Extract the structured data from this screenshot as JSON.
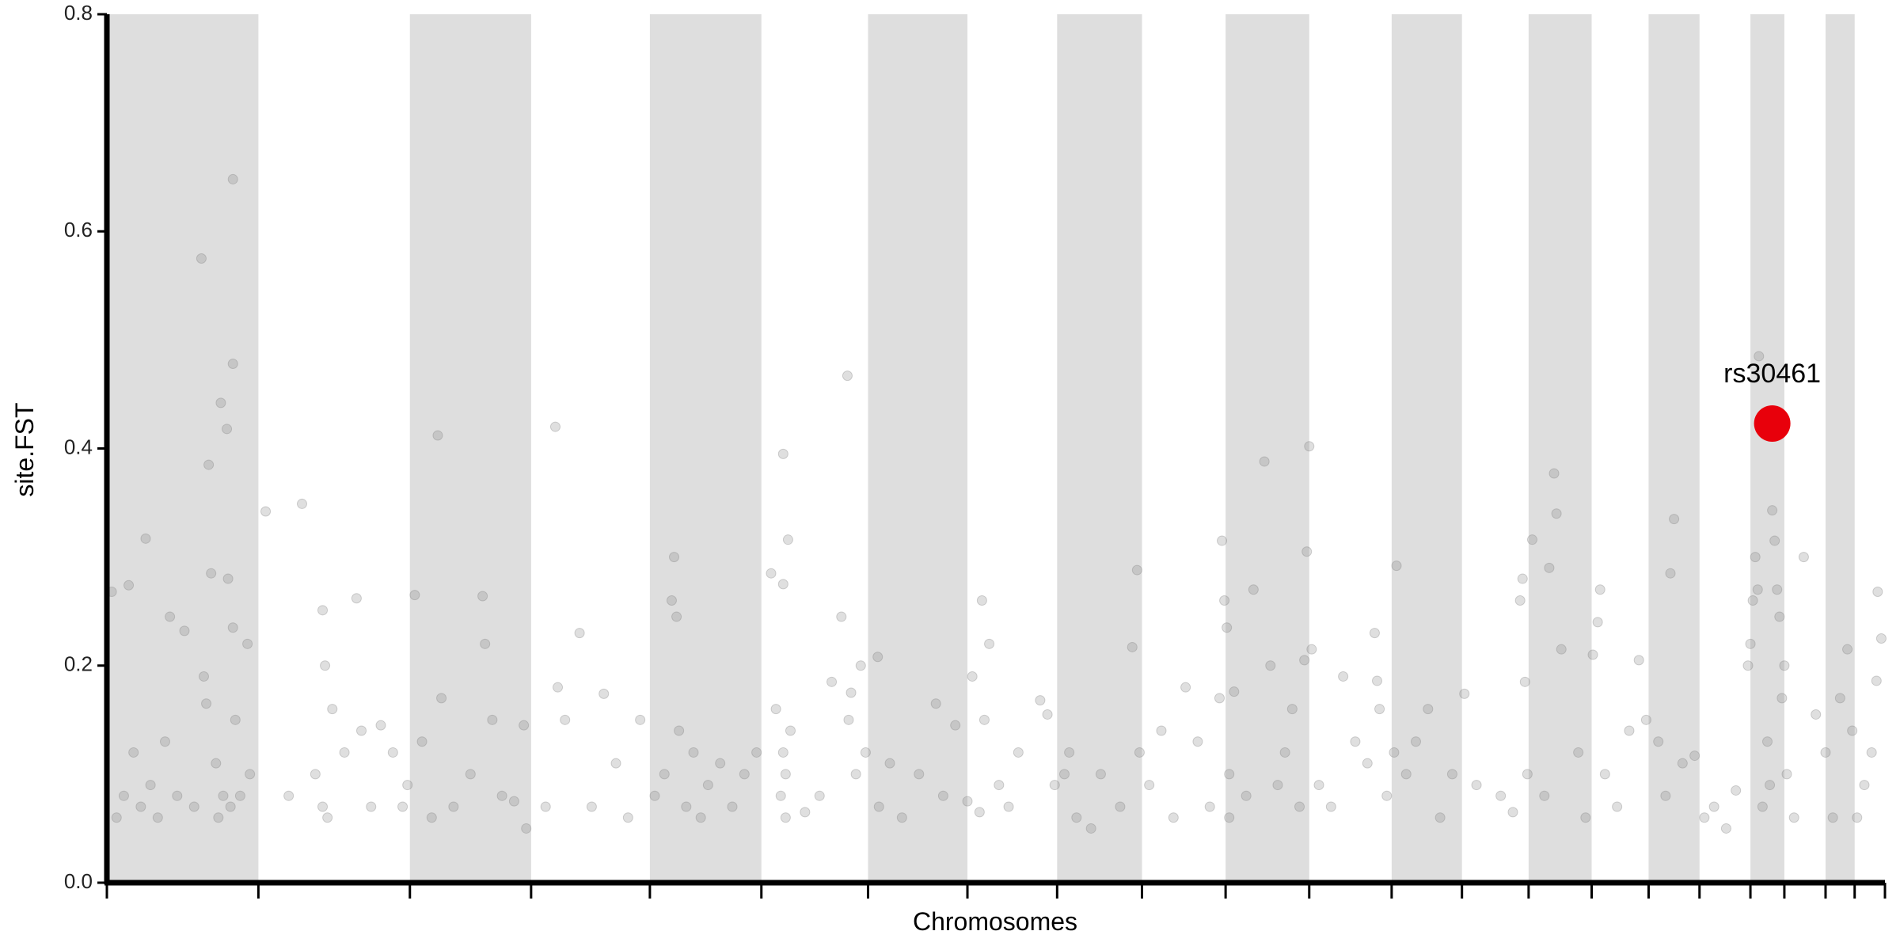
{
  "chart_data": {
    "type": "scatter",
    "x_label": "Chromosomes",
    "y_label": "site.FST",
    "xlim": [
      0,
      1467
    ],
    "ylim": [
      0,
      0.8
    ],
    "yticks": [
      {
        "value": 0,
        "label": "0.0"
      },
      0.2,
      0.4,
      0.6,
      0.8
    ],
    "chromosome_bounds": [
      0,
      125,
      250,
      350,
      448,
      540,
      628,
      710,
      784,
      854,
      923,
      992,
      1060,
      1118,
      1173,
      1225,
      1272,
      1314,
      1356,
      1384,
      1418,
      1442,
      1467
    ],
    "band_color": "#dedede",
    "color": "#808080",
    "x": [
      4,
      8,
      14,
      18,
      22,
      28,
      32,
      36,
      42,
      48,
      52,
      58,
      64,
      72,
      78,
      80,
      82,
      84,
      86,
      90,
      92,
      94,
      96,
      99,
      100,
      102,
      104,
      104,
      104,
      106,
      110,
      116,
      118,
      131,
      150,
      161,
      172,
      178,
      178,
      180,
      182,
      186,
      196,
      206,
      210,
      218,
      226,
      236,
      244,
      248,
      254,
      260,
      268,
      273,
      276,
      286,
      300,
      310,
      312,
      318,
      326,
      336,
      344,
      346,
      362,
      370,
      372,
      378,
      390,
      400,
      410,
      420,
      430,
      440,
      452,
      460,
      466,
      468,
      470,
      472,
      478,
      484,
      490,
      496,
      506,
      516,
      526,
      536,
      548,
      552,
      556,
      558,
      558,
      558,
      560,
      560,
      562,
      564,
      576,
      588,
      598,
      606,
      611,
      612,
      614,
      618,
      622,
      626,
      636,
      637,
      646,
      656,
      670,
      684,
      690,
      700,
      710,
      714,
      720,
      722,
      724,
      728,
      736,
      744,
      752,
      770,
      776,
      782,
      790,
      794,
      800,
      812,
      820,
      836,
      846,
      850,
      852,
      860,
      870,
      880,
      890,
      900,
      910,
      918,
      920,
      922,
      924,
      926,
      926,
      930,
      940,
      946,
      955,
      960,
      966,
      972,
      978,
      984,
      988,
      990,
      992,
      994,
      1000,
      1010,
      1020,
      1030,
      1040,
      1046,
      1048,
      1050,
      1056,
      1062,
      1064,
      1072,
      1080,
      1090,
      1100,
      1110,
      1120,
      1130,
      1150,
      1160,
      1166,
      1168,
      1170,
      1172,
      1176,
      1186,
      1190,
      1194,
      1196,
      1200,
      1214,
      1220,
      1226,
      1230,
      1232,
      1236,
      1246,
      1256,
      1264,
      1270,
      1280,
      1286,
      1290,
      1293,
      1300,
      1310,
      1318,
      1326,
      1336,
      1344,
      1354,
      1356,
      1358,
      1360,
      1362,
      1363,
      1366,
      1370,
      1372,
      1374,
      1376,
      1378,
      1380,
      1382,
      1384,
      1386,
      1392,
      1400,
      1410,
      1418,
      1424,
      1430,
      1436,
      1440,
      1444,
      1450,
      1456,
      1460,
      1461,
      1464
    ],
    "values": [
      0.268,
      0.06,
      0.08,
      0.274,
      0.12,
      0.07,
      0.317,
      0.09,
      0.06,
      0.13,
      0.245,
      0.08,
      0.232,
      0.07,
      0.575,
      0.19,
      0.165,
      0.385,
      0.285,
      0.11,
      0.06,
      0.442,
      0.08,
      0.418,
      0.28,
      0.07,
      0.648,
      0.478,
      0.235,
      0.15,
      0.08,
      0.22,
      0.1,
      0.342,
      0.08,
      0.349,
      0.1,
      0.251,
      0.07,
      0.2,
      0.06,
      0.16,
      0.12,
      0.262,
      0.14,
      0.07,
      0.145,
      0.12,
      0.07,
      0.09,
      0.265,
      0.13,
      0.06,
      0.412,
      0.17,
      0.07,
      0.1,
      0.264,
      0.22,
      0.15,
      0.08,
      0.075,
      0.145,
      0.05,
      0.07,
      0.42,
      0.18,
      0.15,
      0.23,
      0.07,
      0.174,
      0.11,
      0.06,
      0.15,
      0.08,
      0.1,
      0.26,
      0.3,
      0.245,
      0.14,
      0.07,
      0.12,
      0.06,
      0.09,
      0.11,
      0.07,
      0.1,
      0.12,
      0.285,
      0.16,
      0.08,
      0.395,
      0.275,
      0.12,
      0.06,
      0.1,
      0.316,
      0.14,
      0.065,
      0.08,
      0.185,
      0.245,
      0.467,
      0.15,
      0.175,
      0.1,
      0.2,
      0.12,
      0.208,
      0.07,
      0.11,
      0.06,
      0.1,
      0.165,
      0.08,
      0.145,
      0.075,
      0.19,
      0.065,
      0.26,
      0.15,
      0.22,
      0.09,
      0.07,
      0.12,
      0.168,
      0.155,
      0.09,
      0.1,
      0.12,
      0.06,
      0.05,
      0.1,
      0.07,
      0.217,
      0.288,
      0.12,
      0.09,
      0.14,
      0.06,
      0.18,
      0.13,
      0.07,
      0.17,
      0.315,
      0.26,
      0.235,
      0.1,
      0.06,
      0.176,
      0.08,
      0.27,
      0.388,
      0.2,
      0.09,
      0.12,
      0.16,
      0.07,
      0.205,
      0.305,
      0.402,
      0.215,
      0.09,
      0.07,
      0.19,
      0.13,
      0.11,
      0.23,
      0.186,
      0.16,
      0.08,
      0.12,
      0.292,
      0.1,
      0.13,
      0.16,
      0.06,
      0.1,
      0.174,
      0.09,
      0.08,
      0.065,
      0.26,
      0.28,
      0.185,
      0.1,
      0.316,
      0.08,
      0.29,
      0.377,
      0.34,
      0.215,
      0.12,
      0.06,
      0.21,
      0.24,
      0.27,
      0.1,
      0.07,
      0.14,
      0.205,
      0.15,
      0.13,
      0.08,
      0.285,
      0.335,
      0.11,
      0.117,
      0.06,
      0.07,
      0.05,
      0.085,
      0.2,
      0.22,
      0.26,
      0.3,
      0.27,
      0.485,
      0.07,
      0.13,
      0.09,
      0.343,
      0.315,
      0.27,
      0.245,
      0.17,
      0.2,
      0.1,
      0.06,
      0.3,
      0.155,
      0.12,
      0.06,
      0.17,
      0.215,
      0.14,
      0.06,
      0.09,
      0.12,
      0.186,
      0.268,
      0.225
    ],
    "highlight": {
      "label": "rs30461",
      "x": 1374,
      "value": 0.423,
      "color": "#e8000b"
    }
  }
}
